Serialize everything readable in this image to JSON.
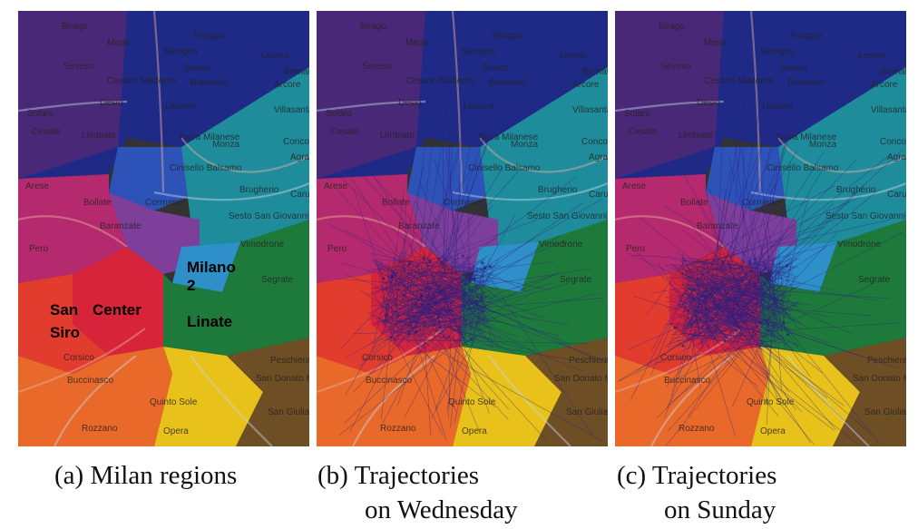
{
  "captions": {
    "a": {
      "marker": "(a)",
      "line1": "Milan regions",
      "line2": ""
    },
    "b": {
      "marker": "(b)",
      "line1": "Trajectories",
      "line2": "on Wednesday"
    },
    "c": {
      "marker": "(c)",
      "line1": "Trajectories",
      "line2": "on Sunday"
    }
  },
  "region_labels": [
    "San",
    "Siro",
    "Center",
    "Milano",
    "2",
    "Linate"
  ],
  "place_names": [
    "Birago",
    "Meda",
    "Triuggio",
    "Seregno",
    "Sovico",
    "Lesmo",
    "Seveso",
    "Cesano Maderno",
    "Biassono",
    "Arcore",
    "Desio",
    "Lissone",
    "Villasanta",
    "Solaro",
    "Cesate",
    "Limbiate",
    "Nova Milanese",
    "Concorezzo",
    "Monza",
    "Agrate",
    "Cinisello Balsamo",
    "Brugherio",
    "Carugate",
    "Arese",
    "Bollate",
    "Cormano",
    "Sesto San Giovanni",
    "Baranzate",
    "Vimodrone",
    "Pero",
    "Segrate",
    "Peschiera Borromeo",
    "Corsico",
    "Buccinasco",
    "San Donato Milanese",
    "San Giuliano Milanese",
    "Quinto Sole",
    "Rozzano",
    "Opera",
    "Bernate"
  ],
  "colors": {
    "north_navy": "#1f2a86",
    "northwest_purple": "#4a2878",
    "northeast_blue": "#2d52b8",
    "east_teal": "#1f8c9c",
    "magenta": "#b52a6e",
    "violet": "#7d3f9a",
    "center_red": "#d8243a",
    "san_siro_red": "#e23c2f",
    "green": "#1e7a3a",
    "sky_blue": "#2f8fc9",
    "orange": "#e8692a",
    "yellow": "#e8c21a",
    "brown": "#6e4e24",
    "trajectory": "#2b1f80"
  }
}
